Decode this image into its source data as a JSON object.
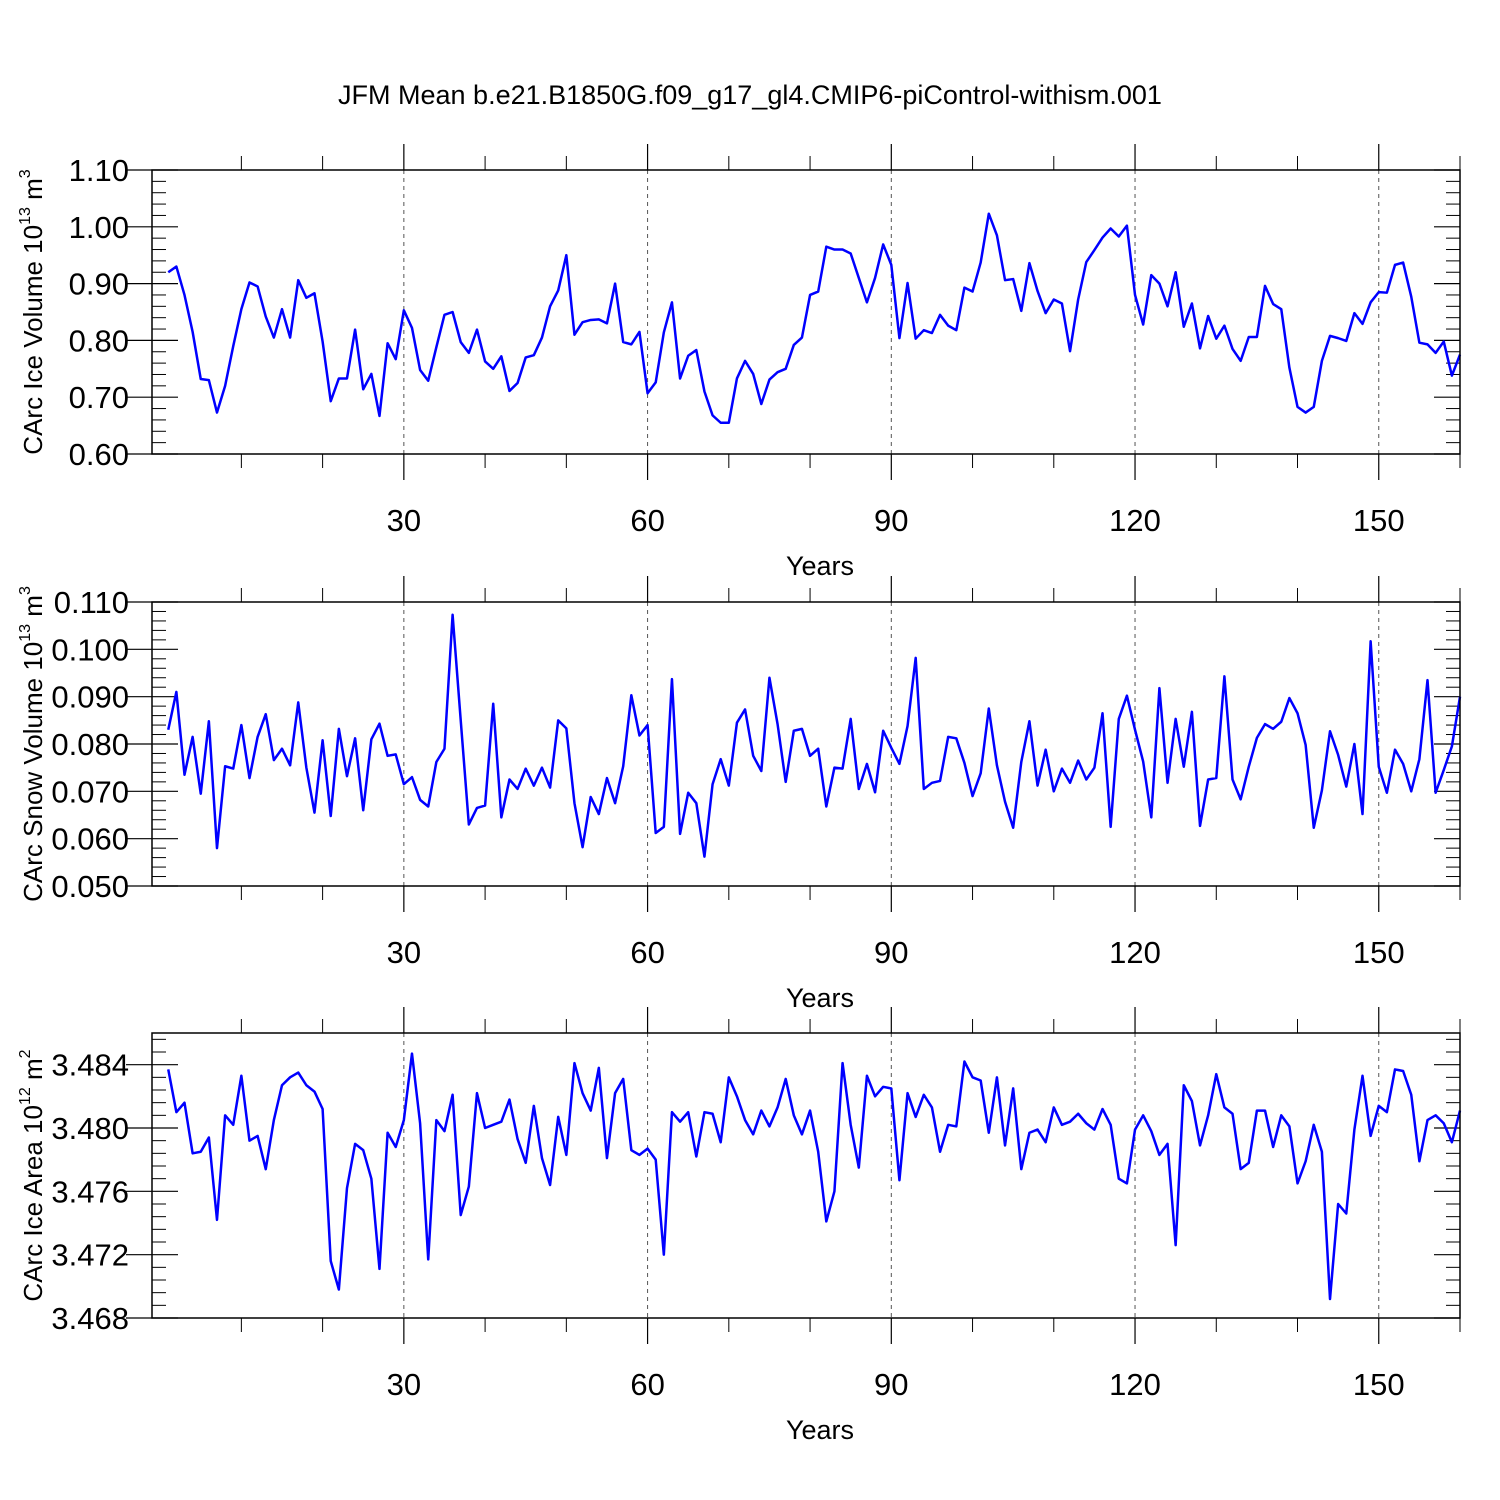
{
  "title": "JFM Mean b.e21.B1850G.f09_g17_gl4.CMIP6-piControl-withism.001",
  "chart_data": [
    {
      "type": "line",
      "name": "ice-volume",
      "ylabel": "CArc Ice Volume 10",
      "ylabel_sup": "13",
      "ylabel_unit": "m",
      "ylabel_unit_sup": "3",
      "xlabel": "Years",
      "xlim": [
        -1,
        160
      ],
      "xticks": [
        30,
        60,
        90,
        120,
        150
      ],
      "xtick_labels": [
        "30",
        "60",
        "90",
        "120",
        "150"
      ],
      "ylim": [
        0.6,
        1.1
      ],
      "yticks": [
        0.6,
        0.7,
        0.8,
        0.9,
        1.0,
        1.1
      ],
      "ytick_labels": [
        "0.60",
        "0.70",
        "0.80",
        "0.90",
        "1.00",
        "1.10"
      ],
      "grid": "vertical-dashed",
      "color": "#0000ff",
      "x_start": 1,
      "values": [
        0.92,
        0.93,
        0.88,
        0.815,
        0.732,
        0.73,
        0.673,
        0.72,
        0.79,
        0.855,
        0.902,
        0.895,
        0.842,
        0.805,
        0.855,
        0.805,
        0.906,
        0.875,
        0.883,
        0.798,
        0.693,
        0.733,
        0.733,
        0.819,
        0.714,
        0.741,
        0.667,
        0.795,
        0.767,
        0.853,
        0.822,
        0.748,
        0.729,
        0.788,
        0.845,
        0.85,
        0.797,
        0.778,
        0.819,
        0.763,
        0.75,
        0.772,
        0.711,
        0.725,
        0.77,
        0.774,
        0.805,
        0.86,
        0.888,
        0.95,
        0.81,
        0.832,
        0.836,
        0.837,
        0.83,
        0.9,
        0.797,
        0.793,
        0.815,
        0.707,
        0.726,
        0.814,
        0.867,
        0.733,
        0.773,
        0.783,
        0.71,
        0.668,
        0.655,
        0.655,
        0.733,
        0.764,
        0.741,
        0.688,
        0.731,
        0.744,
        0.75,
        0.792,
        0.805,
        0.88,
        0.886,
        0.965,
        0.96,
        0.96,
        0.953,
        0.91,
        0.867,
        0.91,
        0.969,
        0.933,
        0.804,
        0.901,
        0.803,
        0.818,
        0.813,
        0.845,
        0.826,
        0.818,
        0.893,
        0.886,
        0.937,
        1.023,
        0.985,
        0.906,
        0.908,
        0.852,
        0.936,
        0.887,
        0.848,
        0.872,
        0.865,
        0.781,
        0.872,
        0.938,
        0.959,
        0.981,
        0.997,
        0.983,
        1.002,
        0.88,
        0.828,
        0.915,
        0.9,
        0.86,
        0.92,
        0.824,
        0.865,
        0.786,
        0.843,
        0.803,
        0.826,
        0.785,
        0.764,
        0.806,
        0.806,
        0.896,
        0.864,
        0.855,
        0.752,
        0.683,
        0.673,
        0.683,
        0.764,
        0.808,
        0.804,
        0.799,
        0.848,
        0.829,
        0.867,
        0.885,
        0.884,
        0.933,
        0.937,
        0.877,
        0.796,
        0.793,
        0.778,
        0.798,
        0.738,
        0.775
      ]
    },
    {
      "type": "line",
      "name": "snow-volume",
      "ylabel": "CArc Snow Volume 10",
      "ylabel_sup": "13",
      "ylabel_unit": "m",
      "ylabel_unit_sup": "3",
      "xlabel": "Years",
      "xlim": [
        -1,
        160
      ],
      "xticks": [
        30,
        60,
        90,
        120,
        150
      ],
      "xtick_labels": [
        "30",
        "60",
        "90",
        "120",
        "150"
      ],
      "ylim": [
        0.05,
        0.11
      ],
      "yticks": [
        0.05,
        0.06,
        0.07,
        0.08,
        0.09,
        0.1,
        0.11
      ],
      "ytick_labels": [
        "0.050",
        "0.060",
        "0.070",
        "0.080",
        "0.090",
        "0.100",
        "0.110"
      ],
      "grid": "vertical-dashed",
      "color": "#0000ff",
      "x_start": 1,
      "values": [
        0.083,
        0.091,
        0.0735,
        0.0815,
        0.0695,
        0.0848,
        0.058,
        0.0753,
        0.0748,
        0.084,
        0.0728,
        0.0815,
        0.0863,
        0.0766,
        0.079,
        0.0755,
        0.0888,
        0.075,
        0.0655,
        0.0808,
        0.0648,
        0.0832,
        0.0732,
        0.0812,
        0.066,
        0.081,
        0.0843,
        0.0775,
        0.0778,
        0.0715,
        0.073,
        0.0682,
        0.0668,
        0.0762,
        0.079,
        0.1073,
        0.085,
        0.063,
        0.0665,
        0.067,
        0.0885,
        0.0645,
        0.0725,
        0.0705,
        0.0748,
        0.0712,
        0.075,
        0.0708,
        0.085,
        0.0833,
        0.0675,
        0.0582,
        0.0688,
        0.0652,
        0.0728,
        0.0675,
        0.0753,
        0.0903,
        0.0818,
        0.084,
        0.0612,
        0.0625,
        0.0937,
        0.061,
        0.0697,
        0.0675,
        0.0562,
        0.0715,
        0.0768,
        0.0712,
        0.0845,
        0.0873,
        0.0775,
        0.0743,
        0.094,
        0.0842,
        0.072,
        0.0828,
        0.0832,
        0.0775,
        0.079,
        0.0668,
        0.075,
        0.0748,
        0.0853,
        0.0705,
        0.0758,
        0.0698,
        0.0828,
        0.0792,
        0.0758,
        0.0838,
        0.0982,
        0.0705,
        0.0718,
        0.0722,
        0.0815,
        0.0812,
        0.076,
        0.069,
        0.0738,
        0.0875,
        0.0755,
        0.0678,
        0.0623,
        0.0762,
        0.0848,
        0.0712,
        0.0788,
        0.07,
        0.0748,
        0.0718,
        0.0765,
        0.0725,
        0.075,
        0.0865,
        0.0625,
        0.0853,
        0.0902,
        0.083,
        0.0763,
        0.0645,
        0.0918,
        0.0718,
        0.0853,
        0.0752,
        0.0868,
        0.0627,
        0.0725,
        0.0728,
        0.0943,
        0.0725,
        0.0683,
        0.0752,
        0.0813,
        0.0842,
        0.0832,
        0.0847,
        0.0897,
        0.0865,
        0.0798,
        0.0623,
        0.0702,
        0.0827,
        0.0777,
        0.071,
        0.08,
        0.0652,
        0.1017,
        0.0752,
        0.0697,
        0.0788,
        0.0758,
        0.07,
        0.0768,
        0.0935,
        0.0697,
        0.0745,
        0.0795,
        0.09
      ]
    },
    {
      "type": "line",
      "name": "ice-area",
      "ylabel": "CArc Ice Area 10",
      "ylabel_sup": "12",
      "ylabel_unit": "m",
      "ylabel_unit_sup": "2",
      "xlabel": "Years",
      "xlim": [
        -1,
        160
      ],
      "xticks": [
        30,
        60,
        90,
        120,
        150
      ],
      "xtick_labels": [
        "30",
        "60",
        "90",
        "120",
        "150"
      ],
      "ylim": [
        3.468,
        3.486
      ],
      "yticks": [
        3.468,
        3.472,
        3.476,
        3.48,
        3.484
      ],
      "ytick_labels": [
        "3.468",
        "3.472",
        "3.476",
        "3.480",
        "3.484"
      ],
      "grid": "vertical-dashed",
      "color": "#0000ff",
      "x_start": 1,
      "values": [
        3.4837,
        3.481,
        3.4816,
        3.4784,
        3.4785,
        3.4794,
        3.4742,
        3.4808,
        3.4802,
        3.4833,
        3.4792,
        3.4795,
        3.4774,
        3.4805,
        3.4827,
        3.4832,
        3.4835,
        3.4827,
        3.4823,
        3.4812,
        3.4716,
        3.4698,
        3.4762,
        3.479,
        3.4786,
        3.4768,
        3.4711,
        3.4797,
        3.4788,
        3.4805,
        3.4847,
        3.4803,
        3.4717,
        3.4805,
        3.4798,
        3.4821,
        3.4745,
        3.4763,
        3.4822,
        3.48,
        3.4802,
        3.4804,
        3.4818,
        3.4793,
        3.4778,
        3.4814,
        3.4781,
        3.4764,
        3.4807,
        3.4783,
        3.4841,
        3.4822,
        3.4811,
        3.4838,
        3.4781,
        3.4822,
        3.4831,
        3.4786,
        3.4783,
        3.4787,
        3.478,
        3.472,
        3.481,
        3.4804,
        3.481,
        3.4782,
        3.481,
        3.4809,
        3.4791,
        3.4832,
        3.482,
        3.4805,
        3.4796,
        3.4811,
        3.4801,
        3.4813,
        3.4831,
        3.4808,
        3.4796,
        3.4811,
        3.4785,
        3.4741,
        3.476,
        3.4841,
        3.4802,
        3.4775,
        3.4833,
        3.482,
        3.4826,
        3.4825,
        3.4767,
        3.4822,
        3.4807,
        3.4821,
        3.4813,
        3.4785,
        3.4802,
        3.4801,
        3.4842,
        3.4832,
        3.483,
        3.4797,
        3.4832,
        3.4789,
        3.4825,
        3.4774,
        3.4797,
        3.4799,
        3.4791,
        3.4813,
        3.4802,
        3.4804,
        3.4809,
        3.4803,
        3.4799,
        3.4812,
        3.4802,
        3.4768,
        3.4765,
        3.4799,
        3.4808,
        3.4798,
        3.4783,
        3.479,
        3.4726,
        3.4827,
        3.4817,
        3.4789,
        3.4808,
        3.4834,
        3.4813,
        3.4809,
        3.4774,
        3.4778,
        3.4811,
        3.4811,
        3.4788,
        3.4808,
        3.4801,
        3.4765,
        3.4779,
        3.4802,
        3.4785,
        3.4692,
        3.4752,
        3.4746,
        3.4799,
        3.4833,
        3.4795,
        3.4814,
        3.481,
        3.4837,
        3.4836,
        3.4821,
        3.4779,
        3.4805,
        3.4808,
        3.4803,
        3.4791,
        3.4811
      ]
    }
  ]
}
